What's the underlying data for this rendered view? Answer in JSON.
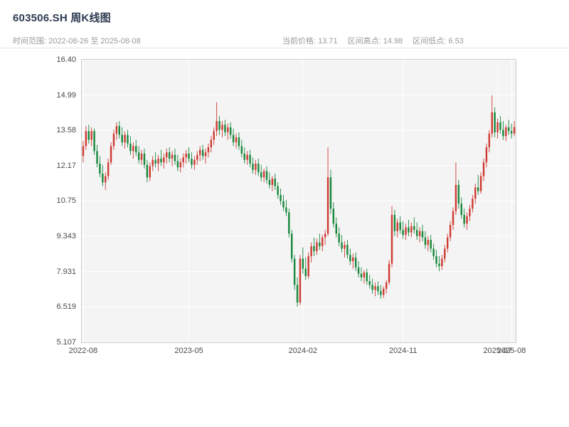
{
  "header": {
    "title": "603506.SH 周K线图",
    "subtitle_left": "时间范围: 2022-08-26 至 2025-08-08",
    "stats": {
      "current": "当前价格: 13.71",
      "high": "区间高点: 14.98",
      "low": "区间低点: 6.53"
    }
  },
  "chart_data": {
    "type": "candlestick",
    "title": "603506.SH 周K线图",
    "frequency": "weekly",
    "date_range": {
      "start": "2022-08-26",
      "end": "2025-08-08"
    },
    "current_price": 13.71,
    "range_high": 14.98,
    "range_low": 6.53,
    "ylim": [
      5.107,
      16.4
    ],
    "grid": true,
    "y_ticks": [
      {
        "label": "16.40",
        "value": 16.4
      },
      {
        "label": "14.99",
        "value": 14.988
      },
      {
        "label": "13.58",
        "value": 13.577
      },
      {
        "label": "12.17",
        "value": 12.165
      },
      {
        "label": "10.75",
        "value": 10.754
      },
      {
        "label": "9.343",
        "value": 9.342
      },
      {
        "label": "7.931",
        "value": 7.931
      },
      {
        "label": "6.519",
        "value": 6.519
      },
      {
        "label": "5.107",
        "value": 5.107
      }
    ],
    "x_ticks": [
      {
        "label": "2022-08",
        "index": 0
      },
      {
        "label": "2023-05",
        "index": 38
      },
      {
        "label": "2024-02",
        "index": 79
      },
      {
        "label": "2024-11",
        "index": 115
      },
      {
        "label": "2025-07",
        "index": 149
      },
      {
        "label": "2025-08",
        "index": 154
      }
    ],
    "colors": {
      "up": "#cf3a31",
      "down": "#18883c",
      "plot_bg": "#f4f4f5",
      "grid": "#ffffff",
      "spine": "#c9c9c9",
      "title": "#2e3b52",
      "subtitle": "#9a9a9a",
      "tick": "#4a4a4a"
    },
    "candles": [
      [
        12.55,
        13.15,
        12.3,
        12.95
      ],
      [
        12.95,
        13.75,
        12.8,
        13.55
      ],
      [
        13.55,
        13.8,
        13.05,
        13.2
      ],
      [
        13.2,
        13.7,
        12.95,
        13.55
      ],
      [
        13.55,
        13.65,
        12.6,
        12.75
      ],
      [
        12.75,
        13.0,
        12.1,
        12.25
      ],
      [
        12.25,
        12.55,
        11.7,
        11.85
      ],
      [
        11.85,
        12.2,
        11.35,
        11.5
      ],
      [
        11.5,
        11.9,
        11.2,
        11.75
      ],
      [
        11.75,
        12.45,
        11.6,
        12.3
      ],
      [
        12.3,
        13.1,
        12.2,
        12.95
      ],
      [
        12.95,
        13.6,
        12.8,
        13.45
      ],
      [
        13.45,
        13.9,
        13.2,
        13.75
      ],
      [
        13.75,
        13.95,
        13.25,
        13.4
      ],
      [
        13.4,
        13.7,
        12.95,
        13.1
      ],
      [
        13.1,
        13.55,
        12.85,
        13.4
      ],
      [
        13.4,
        13.6,
        12.9,
        13.05
      ],
      [
        13.05,
        13.35,
        12.6,
        12.75
      ],
      [
        12.75,
        13.1,
        12.45,
        12.95
      ],
      [
        12.95,
        13.2,
        12.55,
        12.7
      ],
      [
        12.7,
        12.95,
        12.25,
        12.4
      ],
      [
        12.4,
        12.8,
        12.2,
        12.65
      ],
      [
        12.65,
        12.85,
        12.05,
        12.2
      ],
      [
        12.2,
        12.4,
        11.5,
        11.7
      ],
      [
        11.7,
        12.3,
        11.55,
        12.15
      ],
      [
        12.15,
        12.55,
        11.95,
        12.4
      ],
      [
        12.4,
        12.7,
        12.1,
        12.25
      ],
      [
        12.25,
        12.6,
        11.95,
        12.45
      ],
      [
        12.45,
        12.8,
        12.15,
        12.3
      ],
      [
        12.3,
        12.65,
        12.05,
        12.5
      ],
      [
        12.5,
        12.85,
        12.25,
        12.7
      ],
      [
        12.7,
        12.9,
        12.3,
        12.45
      ],
      [
        12.45,
        12.75,
        12.15,
        12.6
      ],
      [
        12.6,
        12.85,
        12.2,
        12.35
      ],
      [
        12.35,
        12.6,
        11.95,
        12.1
      ],
      [
        12.1,
        12.45,
        11.9,
        12.3
      ],
      [
        12.3,
        12.65,
        12.1,
        12.5
      ],
      [
        12.5,
        12.8,
        12.25,
        12.65
      ],
      [
        12.65,
        12.9,
        12.3,
        12.45
      ],
      [
        12.45,
        12.7,
        12.05,
        12.2
      ],
      [
        12.2,
        12.55,
        12.0,
        12.4
      ],
      [
        12.4,
        12.75,
        12.2,
        12.6
      ],
      [
        12.6,
        12.95,
        12.35,
        12.8
      ],
      [
        12.8,
        13.0,
        12.4,
        12.55
      ],
      [
        12.55,
        12.85,
        12.25,
        12.7
      ],
      [
        12.7,
        13.05,
        12.5,
        12.9
      ],
      [
        12.9,
        13.35,
        12.7,
        13.2
      ],
      [
        13.2,
        13.7,
        13.0,
        13.55
      ],
      [
        13.55,
        14.7,
        13.35,
        13.95
      ],
      [
        13.95,
        14.15,
        13.4,
        13.6
      ],
      [
        13.6,
        13.95,
        13.3,
        13.8
      ],
      [
        13.8,
        14.0,
        13.35,
        13.5
      ],
      [
        13.5,
        13.85,
        13.2,
        13.7
      ],
      [
        13.7,
        13.9,
        13.25,
        13.4
      ],
      [
        13.4,
        13.65,
        12.95,
        13.1
      ],
      [
        13.1,
        13.45,
        12.85,
        13.3
      ],
      [
        13.3,
        13.5,
        12.8,
        12.95
      ],
      [
        12.95,
        13.2,
        12.5,
        12.65
      ],
      [
        12.65,
        12.9,
        12.25,
        12.4
      ],
      [
        12.4,
        12.75,
        12.2,
        12.6
      ],
      [
        12.6,
        12.8,
        12.1,
        12.25
      ],
      [
        12.25,
        12.5,
        11.85,
        12.0
      ],
      [
        12.0,
        12.4,
        11.8,
        12.25
      ],
      [
        12.25,
        12.45,
        11.75,
        11.9
      ],
      [
        11.9,
        12.2,
        11.55,
        11.7
      ],
      [
        11.7,
        12.05,
        11.5,
        11.95
      ],
      [
        11.95,
        12.15,
        11.45,
        11.6
      ],
      [
        11.6,
        11.9,
        11.25,
        11.4
      ],
      [
        11.4,
        11.75,
        11.15,
        11.65
      ],
      [
        11.65,
        11.85,
        11.2,
        11.35
      ],
      [
        11.35,
        11.5,
        10.85,
        11.0
      ],
      [
        11.0,
        11.25,
        10.6,
        10.75
      ],
      [
        10.75,
        11.0,
        10.35,
        10.5
      ],
      [
        10.5,
        10.8,
        10.15,
        10.3
      ],
      [
        10.3,
        10.45,
        9.3,
        9.45
      ],
      [
        9.45,
        9.6,
        8.3,
        8.45
      ],
      [
        8.45,
        8.6,
        7.2,
        7.4
      ],
      [
        7.4,
        7.7,
        6.53,
        6.7
      ],
      [
        6.7,
        8.6,
        6.6,
        8.45
      ],
      [
        8.45,
        8.9,
        7.85,
        8.05
      ],
      [
        8.05,
        8.5,
        7.6,
        7.75
      ],
      [
        7.75,
        8.7,
        7.65,
        8.55
      ],
      [
        8.55,
        9.1,
        8.3,
        8.95
      ],
      [
        8.95,
        9.3,
        8.55,
        8.75
      ],
      [
        8.75,
        9.25,
        8.6,
        9.1
      ],
      [
        9.1,
        9.45,
        8.8,
        8.95
      ],
      [
        8.95,
        9.4,
        8.75,
        9.3
      ],
      [
        9.3,
        9.6,
        9.0,
        9.45
      ],
      [
        9.45,
        12.9,
        9.35,
        11.7
      ],
      [
        11.7,
        12.0,
        10.25,
        10.45
      ],
      [
        10.45,
        10.7,
        9.7,
        9.85
      ],
      [
        9.85,
        10.1,
        9.3,
        9.45
      ],
      [
        9.45,
        9.7,
        8.95,
        9.1
      ],
      [
        9.1,
        9.4,
        8.7,
        8.85
      ],
      [
        8.85,
        9.15,
        8.5,
        9.0
      ],
      [
        9.0,
        9.2,
        8.45,
        8.6
      ],
      [
        8.6,
        8.85,
        8.2,
        8.35
      ],
      [
        8.35,
        8.65,
        8.05,
        8.5
      ],
      [
        8.5,
        8.7,
        7.95,
        8.1
      ],
      [
        8.1,
        8.35,
        7.7,
        7.85
      ],
      [
        7.85,
        8.1,
        7.55,
        7.7
      ],
      [
        7.7,
        8.0,
        7.45,
        7.9
      ],
      [
        7.9,
        8.05,
        7.4,
        7.55
      ],
      [
        7.55,
        7.8,
        7.25,
        7.4
      ],
      [
        7.4,
        7.65,
        7.05,
        7.2
      ],
      [
        7.2,
        7.5,
        6.95,
        7.35
      ],
      [
        7.35,
        7.55,
        7.0,
        7.15
      ],
      [
        7.15,
        7.4,
        6.85,
        7.0
      ],
      [
        7.0,
        7.35,
        6.88,
        7.25
      ],
      [
        7.25,
        7.6,
        7.05,
        7.5
      ],
      [
        7.5,
        8.4,
        7.4,
        8.25
      ],
      [
        8.25,
        10.55,
        8.1,
        10.2
      ],
      [
        10.2,
        10.4,
        9.35,
        9.55
      ],
      [
        9.55,
        10.05,
        9.3,
        9.9
      ],
      [
        9.9,
        10.15,
        9.45,
        9.6
      ],
      [
        9.6,
        9.95,
        9.25,
        9.4
      ],
      [
        9.4,
        9.85,
        9.2,
        9.7
      ],
      [
        9.7,
        10.0,
        9.35,
        9.5
      ],
      [
        9.5,
        9.9,
        9.3,
        9.75
      ],
      [
        9.75,
        10.1,
        9.45,
        9.6
      ],
      [
        9.6,
        9.9,
        9.2,
        9.35
      ],
      [
        9.35,
        9.7,
        9.1,
        9.55
      ],
      [
        9.55,
        9.8,
        9.15,
        9.3
      ],
      [
        9.3,
        9.55,
        8.85,
        9.0
      ],
      [
        9.0,
        9.35,
        8.75,
        9.2
      ],
      [
        9.2,
        9.4,
        8.7,
        8.85
      ],
      [
        8.85,
        9.05,
        8.4,
        8.55
      ],
      [
        8.55,
        8.8,
        8.1,
        8.25
      ],
      [
        8.25,
        8.55,
        7.95,
        8.15
      ],
      [
        8.15,
        8.6,
        8.0,
        8.45
      ],
      [
        8.45,
        9.0,
        8.3,
        8.85
      ],
      [
        8.85,
        9.45,
        8.7,
        9.3
      ],
      [
        9.3,
        9.95,
        9.15,
        9.8
      ],
      [
        9.8,
        10.5,
        9.6,
        10.35
      ],
      [
        10.35,
        12.3,
        10.2,
        11.4
      ],
      [
        11.4,
        11.6,
        10.45,
        10.65
      ],
      [
        10.65,
        10.9,
        10.05,
        10.2
      ],
      [
        10.2,
        10.45,
        9.7,
        9.85
      ],
      [
        9.85,
        10.3,
        9.6,
        10.15
      ],
      [
        10.15,
        10.6,
        9.95,
        10.45
      ],
      [
        10.45,
        11.0,
        10.3,
        10.85
      ],
      [
        10.85,
        11.45,
        10.65,
        11.3
      ],
      [
        11.3,
        11.8,
        11.0,
        11.15
      ],
      [
        11.15,
        11.9,
        11.05,
        11.75
      ],
      [
        11.75,
        12.45,
        11.55,
        12.3
      ],
      [
        12.3,
        13.05,
        12.1,
        12.9
      ],
      [
        12.9,
        13.6,
        12.7,
        13.45
      ],
      [
        13.45,
        14.98,
        13.3,
        14.3
      ],
      [
        14.3,
        14.5,
        13.3,
        13.5
      ],
      [
        13.5,
        14.05,
        13.25,
        13.9
      ],
      [
        13.9,
        14.15,
        13.45,
        13.6
      ],
      [
        13.6,
        13.95,
        13.2,
        13.35
      ],
      [
        13.35,
        13.8,
        13.15,
        13.7
      ],
      [
        13.7,
        14.0,
        13.4,
        13.55
      ],
      [
        13.55,
        13.85,
        13.25,
        13.45
      ],
      [
        13.45,
        13.95,
        13.35,
        13.71
      ]
    ]
  }
}
